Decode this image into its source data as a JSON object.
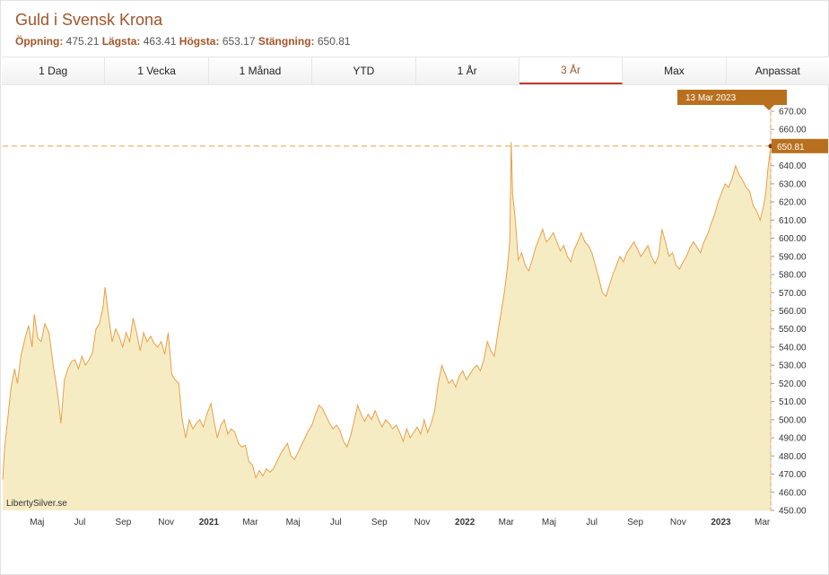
{
  "header": {
    "title": "Guld i Svensk Krona",
    "open_label": "Öppning:",
    "open_value": "475.21",
    "low_label": "Lägsta:",
    "low_value": "463.41",
    "high_label": "Högsta:",
    "high_value": "653.17",
    "close_label": "Stängning:",
    "close_value": "650.81"
  },
  "tabs": [
    {
      "label": "1 Dag",
      "active": false
    },
    {
      "label": "1 Vecka",
      "active": false
    },
    {
      "label": "1 Månad",
      "active": false
    },
    {
      "label": "YTD",
      "active": false
    },
    {
      "label": "1 År",
      "active": false
    },
    {
      "label": "3 År",
      "active": true
    },
    {
      "label": "Max",
      "active": false
    },
    {
      "label": "Anpassat",
      "active": false
    }
  ],
  "colors": {
    "line": "#e8a04a",
    "fill": "#f6ecc4",
    "accent": "#b8701f",
    "active_tab": "#c0392b",
    "title": "#a0552a"
  },
  "watermark": "LibertySilver.se",
  "chart_data": {
    "type": "area",
    "title": "Guld i Svensk Krona",
    "xlabel": "",
    "ylabel": "",
    "ylim": [
      450,
      670
    ],
    "yticks": [
      450,
      460,
      470,
      480,
      490,
      500,
      510,
      520,
      530,
      540,
      550,
      560,
      570,
      580,
      590,
      600,
      610,
      620,
      630,
      640,
      650,
      660,
      670
    ],
    "ytick_labels": [
      "450.00",
      "460.00",
      "470.00",
      "480.00",
      "490.00",
      "500.00",
      "510.00",
      "520.00",
      "530.00",
      "540.00",
      "550.00",
      "560.00",
      "570.00",
      "580.00",
      "590.00",
      "600.00",
      "610.00",
      "620.00",
      "630.00",
      "640.00",
      "650.00",
      "660.00",
      "670.00"
    ],
    "xlim": [
      "2020-03-13",
      "2023-03-13"
    ],
    "xticks": [
      {
        "date": "2020-05-01",
        "label": "Maj",
        "bold": false
      },
      {
        "date": "2020-07-01",
        "label": "Jul",
        "bold": false
      },
      {
        "date": "2020-09-01",
        "label": "Sep",
        "bold": false
      },
      {
        "date": "2020-11-01",
        "label": "Nov",
        "bold": false
      },
      {
        "date": "2021-01-01",
        "label": "2021",
        "bold": true
      },
      {
        "date": "2021-03-01",
        "label": "Mar",
        "bold": false
      },
      {
        "date": "2021-05-01",
        "label": "Maj",
        "bold": false
      },
      {
        "date": "2021-07-01",
        "label": "Jul",
        "bold": false
      },
      {
        "date": "2021-09-01",
        "label": "Sep",
        "bold": false
      },
      {
        "date": "2021-11-01",
        "label": "Nov",
        "bold": false
      },
      {
        "date": "2022-01-01",
        "label": "2022",
        "bold": true
      },
      {
        "date": "2022-03-01",
        "label": "Mar",
        "bold": false
      },
      {
        "date": "2022-05-01",
        "label": "Maj",
        "bold": false
      },
      {
        "date": "2022-07-01",
        "label": "Jul",
        "bold": false
      },
      {
        "date": "2022-09-01",
        "label": "Sep",
        "bold": false
      },
      {
        "date": "2022-11-01",
        "label": "Nov",
        "bold": false
      },
      {
        "date": "2023-01-01",
        "label": "2023",
        "bold": true
      },
      {
        "date": "2023-03-01",
        "label": "Mar",
        "bold": false
      }
    ],
    "series": [
      {
        "points": [
          [
            "2020-03-13",
            467
          ],
          [
            "2020-03-16",
            485
          ],
          [
            "2020-03-20",
            500
          ],
          [
            "2020-03-25",
            518
          ],
          [
            "2020-03-30",
            528
          ],
          [
            "2020-04-03",
            520
          ],
          [
            "2020-04-08",
            535
          ],
          [
            "2020-04-14",
            545
          ],
          [
            "2020-04-19",
            552
          ],
          [
            "2020-04-24",
            540
          ],
          [
            "2020-04-27",
            558
          ],
          [
            "2020-05-02",
            545
          ],
          [
            "2020-05-07",
            543
          ],
          [
            "2020-05-12",
            553
          ],
          [
            "2020-05-18",
            548
          ],
          [
            "2020-05-24",
            530
          ],
          [
            "2020-05-29",
            518
          ],
          [
            "2020-06-01",
            509
          ],
          [
            "2020-06-04",
            498
          ],
          [
            "2020-06-09",
            522
          ],
          [
            "2020-06-14",
            528
          ],
          [
            "2020-06-19",
            532
          ],
          [
            "2020-06-24",
            533
          ],
          [
            "2020-06-29",
            528
          ],
          [
            "2020-07-04",
            535
          ],
          [
            "2020-07-09",
            530
          ],
          [
            "2020-07-14",
            533
          ],
          [
            "2020-07-19",
            537
          ],
          [
            "2020-07-24",
            550
          ],
          [
            "2020-07-29",
            553
          ],
          [
            "2020-08-03",
            562
          ],
          [
            "2020-08-06",
            573
          ],
          [
            "2020-08-11",
            557
          ],
          [
            "2020-08-16",
            543
          ],
          [
            "2020-08-21",
            550
          ],
          [
            "2020-08-26",
            546
          ],
          [
            "2020-08-31",
            540
          ],
          [
            "2020-09-05",
            548
          ],
          [
            "2020-09-10",
            543
          ],
          [
            "2020-09-15",
            556
          ],
          [
            "2020-09-20",
            548
          ],
          [
            "2020-09-25",
            538
          ],
          [
            "2020-09-30",
            548
          ],
          [
            "2020-10-05",
            543
          ],
          [
            "2020-10-10",
            546
          ],
          [
            "2020-10-15",
            542
          ],
          [
            "2020-10-20",
            540
          ],
          [
            "2020-10-25",
            543
          ],
          [
            "2020-10-30",
            536
          ],
          [
            "2020-11-04",
            548
          ],
          [
            "2020-11-09",
            525
          ],
          [
            "2020-11-14",
            522
          ],
          [
            "2020-11-19",
            520
          ],
          [
            "2020-11-24",
            500
          ],
          [
            "2020-11-29",
            490
          ],
          [
            "2020-12-04",
            500
          ],
          [
            "2020-12-09",
            495
          ],
          [
            "2020-12-14",
            498
          ],
          [
            "2020-12-19",
            500
          ],
          [
            "2020-12-24",
            496
          ],
          [
            "2020-12-29",
            503
          ],
          [
            "2021-01-04",
            509
          ],
          [
            "2021-01-08",
            500
          ],
          [
            "2021-01-13",
            490
          ],
          [
            "2021-01-18",
            497
          ],
          [
            "2021-01-23",
            500
          ],
          [
            "2021-01-28",
            492
          ],
          [
            "2021-02-02",
            495
          ],
          [
            "2021-02-07",
            493
          ],
          [
            "2021-02-12",
            487
          ],
          [
            "2021-02-17",
            485
          ],
          [
            "2021-02-22",
            486
          ],
          [
            "2021-02-27",
            477
          ],
          [
            "2021-03-04",
            475
          ],
          [
            "2021-03-09",
            468
          ],
          [
            "2021-03-14",
            472
          ],
          [
            "2021-03-19",
            469
          ],
          [
            "2021-03-24",
            473
          ],
          [
            "2021-03-29",
            471
          ],
          [
            "2021-04-03",
            473
          ],
          [
            "2021-04-08",
            477
          ],
          [
            "2021-04-13",
            481
          ],
          [
            "2021-04-18",
            484
          ],
          [
            "2021-04-23",
            487
          ],
          [
            "2021-04-28",
            480
          ],
          [
            "2021-05-03",
            478
          ],
          [
            "2021-05-08",
            482
          ],
          [
            "2021-05-13",
            486
          ],
          [
            "2021-05-18",
            490
          ],
          [
            "2021-05-23",
            494
          ],
          [
            "2021-05-28",
            497
          ],
          [
            "2021-06-02",
            503
          ],
          [
            "2021-06-07",
            508
          ],
          [
            "2021-06-12",
            506
          ],
          [
            "2021-06-17",
            502
          ],
          [
            "2021-06-22",
            498
          ],
          [
            "2021-06-27",
            495
          ],
          [
            "2021-07-02",
            497
          ],
          [
            "2021-07-07",
            494
          ],
          [
            "2021-07-12",
            488
          ],
          [
            "2021-07-17",
            485
          ],
          [
            "2021-07-22",
            491
          ],
          [
            "2021-07-27",
            499
          ],
          [
            "2021-08-01",
            508
          ],
          [
            "2021-08-06",
            503
          ],
          [
            "2021-08-11",
            499
          ],
          [
            "2021-08-16",
            503
          ],
          [
            "2021-08-21",
            500
          ],
          [
            "2021-08-26",
            505
          ],
          [
            "2021-08-31",
            500
          ],
          [
            "2021-09-05",
            496
          ],
          [
            "2021-09-10",
            500
          ],
          [
            "2021-09-15",
            498
          ],
          [
            "2021-09-20",
            495
          ],
          [
            "2021-09-25",
            497
          ],
          [
            "2021-09-30",
            493
          ],
          [
            "2021-10-05",
            488
          ],
          [
            "2021-10-10",
            495
          ],
          [
            "2021-10-15",
            490
          ],
          [
            "2021-10-20",
            493
          ],
          [
            "2021-10-25",
            496
          ],
          [
            "2021-10-30",
            492
          ],
          [
            "2021-11-04",
            500
          ],
          [
            "2021-11-09",
            493
          ],
          [
            "2021-11-14",
            498
          ],
          [
            "2021-11-19",
            505
          ],
          [
            "2021-11-24",
            520
          ],
          [
            "2021-11-29",
            530
          ],
          [
            "2021-12-04",
            525
          ],
          [
            "2021-12-09",
            520
          ],
          [
            "2021-12-14",
            522
          ],
          [
            "2021-12-19",
            518
          ],
          [
            "2021-12-24",
            524
          ],
          [
            "2021-12-29",
            527
          ],
          [
            "2022-01-03",
            522
          ],
          [
            "2022-01-08",
            525
          ],
          [
            "2022-01-13",
            528
          ],
          [
            "2022-01-18",
            530
          ],
          [
            "2022-01-23",
            527
          ],
          [
            "2022-01-28",
            533
          ],
          [
            "2022-02-02",
            543
          ],
          [
            "2022-02-07",
            538
          ],
          [
            "2022-02-12",
            535
          ],
          [
            "2022-02-17",
            548
          ],
          [
            "2022-02-22",
            560
          ],
          [
            "2022-02-27",
            572
          ],
          [
            "2022-03-03",
            585
          ],
          [
            "2022-03-06",
            598
          ],
          [
            "2022-03-08",
            653
          ],
          [
            "2022-03-10",
            625
          ],
          [
            "2022-03-14",
            610
          ],
          [
            "2022-03-18",
            588
          ],
          [
            "2022-03-23",
            592
          ],
          [
            "2022-03-28",
            585
          ],
          [
            "2022-04-02",
            582
          ],
          [
            "2022-04-07",
            588
          ],
          [
            "2022-04-12",
            595
          ],
          [
            "2022-04-17",
            600
          ],
          [
            "2022-04-22",
            605
          ],
          [
            "2022-04-27",
            598
          ],
          [
            "2022-05-02",
            600
          ],
          [
            "2022-05-07",
            603
          ],
          [
            "2022-05-12",
            598
          ],
          [
            "2022-05-17",
            593
          ],
          [
            "2022-05-22",
            596
          ],
          [
            "2022-05-27",
            590
          ],
          [
            "2022-06-01",
            587
          ],
          [
            "2022-06-06",
            594
          ],
          [
            "2022-06-11",
            598
          ],
          [
            "2022-06-16",
            603
          ],
          [
            "2022-06-21",
            598
          ],
          [
            "2022-06-26",
            596
          ],
          [
            "2022-07-01",
            592
          ],
          [
            "2022-07-06",
            585
          ],
          [
            "2022-07-11",
            578
          ],
          [
            "2022-07-16",
            570
          ],
          [
            "2022-07-21",
            568
          ],
          [
            "2022-07-26",
            574
          ],
          [
            "2022-07-31",
            580
          ],
          [
            "2022-08-05",
            585
          ],
          [
            "2022-08-10",
            590
          ],
          [
            "2022-08-15",
            587
          ],
          [
            "2022-08-20",
            592
          ],
          [
            "2022-08-25",
            595
          ],
          [
            "2022-08-30",
            598
          ],
          [
            "2022-09-04",
            594
          ],
          [
            "2022-09-09",
            590
          ],
          [
            "2022-09-14",
            593
          ],
          [
            "2022-09-19",
            596
          ],
          [
            "2022-09-24",
            590
          ],
          [
            "2022-09-29",
            586
          ],
          [
            "2022-10-04",
            590
          ],
          [
            "2022-10-09",
            605
          ],
          [
            "2022-10-14",
            598
          ],
          [
            "2022-10-19",
            590
          ],
          [
            "2022-10-24",
            592
          ],
          [
            "2022-10-29",
            585
          ],
          [
            "2022-11-03",
            583
          ],
          [
            "2022-11-08",
            587
          ],
          [
            "2022-11-13",
            590
          ],
          [
            "2022-11-18",
            595
          ],
          [
            "2022-11-23",
            598
          ],
          [
            "2022-11-28",
            595
          ],
          [
            "2022-12-03",
            592
          ],
          [
            "2022-12-08",
            598
          ],
          [
            "2022-12-13",
            602
          ],
          [
            "2022-12-18",
            608
          ],
          [
            "2022-12-23",
            613
          ],
          [
            "2022-12-28",
            620
          ],
          [
            "2023-01-02",
            625
          ],
          [
            "2023-01-07",
            630
          ],
          [
            "2023-01-12",
            628
          ],
          [
            "2023-01-17",
            633
          ],
          [
            "2023-01-22",
            640
          ],
          [
            "2023-01-27",
            635
          ],
          [
            "2023-02-01",
            632
          ],
          [
            "2023-02-06",
            628
          ],
          [
            "2023-02-11",
            626
          ],
          [
            "2023-02-16",
            618
          ],
          [
            "2023-02-21",
            615
          ],
          [
            "2023-02-26",
            610
          ],
          [
            "2023-03-03",
            618
          ],
          [
            "2023-03-06",
            625
          ],
          [
            "2023-03-09",
            638
          ],
          [
            "2023-03-13",
            650.81
          ]
        ]
      }
    ],
    "last_date_label": "13 Mar 2023",
    "last_value_label": "650.81"
  }
}
